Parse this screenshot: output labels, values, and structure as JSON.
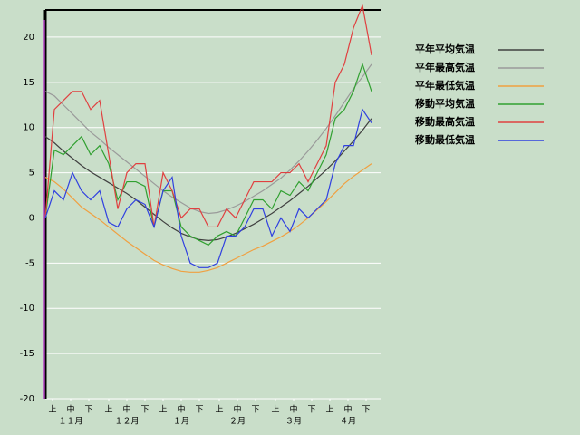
{
  "chart_data": {
    "type": "line",
    "x": [
      0,
      5,
      10,
      15,
      20,
      25,
      30,
      35,
      40,
      45,
      50,
      55,
      60,
      65,
      70,
      75,
      80,
      85,
      90,
      95,
      100,
      105,
      110,
      115,
      120,
      125,
      130,
      135,
      140,
      145,
      150,
      155,
      160,
      165,
      170,
      175,
      180
    ],
    "xlim": [
      0,
      185
    ],
    "xticks": [
      {
        "value": 4,
        "label": "上"
      },
      {
        "value": 14,
        "label": "中"
      },
      {
        "value": 24,
        "label": "下"
      },
      {
        "value": 35,
        "label": "上"
      },
      {
        "value": 45,
        "label": "中"
      },
      {
        "value": 55,
        "label": "下"
      },
      {
        "value": 65,
        "label": "上"
      },
      {
        "value": 75,
        "label": "中"
      },
      {
        "value": 85,
        "label": "下"
      },
      {
        "value": 96,
        "label": "上"
      },
      {
        "value": 106,
        "label": "中"
      },
      {
        "value": 116,
        "label": "下"
      },
      {
        "value": 127,
        "label": "上"
      },
      {
        "value": 137,
        "label": "中"
      },
      {
        "value": 147,
        "label": "下"
      },
      {
        "value": 157,
        "label": "上"
      },
      {
        "value": 167,
        "label": "中"
      },
      {
        "value": 177,
        "label": "下"
      }
    ],
    "month_ticks": [
      {
        "value": 14,
        "label": "１１月"
      },
      {
        "value": 45,
        "label": "１２月"
      },
      {
        "value": 75,
        "label": "１月"
      },
      {
        "value": 106,
        "label": "２月"
      },
      {
        "value": 137,
        "label": "３月"
      },
      {
        "value": 167,
        "label": "４月"
      }
    ],
    "ylim": [
      -20,
      23
    ],
    "yticks": [
      -20,
      -15,
      -10,
      -5,
      0,
      5,
      10,
      15,
      20
    ],
    "grid": true,
    "legend": "right",
    "series": [
      {
        "name": "平年平均気温",
        "color": "#404040",
        "values": [
          9,
          8.3,
          7.4,
          6.6,
          5.8,
          5.1,
          4.5,
          3.9,
          3.3,
          2.7,
          2.0,
          1.2,
          0.4,
          -0.4,
          -1.1,
          -1.7,
          -2.1,
          -2.4,
          -2.5,
          -2.4,
          -2.1,
          -1.7,
          -1.2,
          -0.7,
          -0.1,
          0.5,
          1.2,
          1.9,
          2.7,
          3.5,
          4.4,
          5.3,
          6.3,
          7.4,
          8.5,
          9.7,
          11
        ]
      },
      {
        "name": "平年最高気温",
        "color": "#9a9a9a",
        "values": [
          14,
          13.5,
          12.5,
          11.5,
          10.5,
          9.5,
          8.7,
          7.8,
          7,
          6.2,
          5.4,
          4.6,
          3.8,
          3,
          2.3,
          1.7,
          1.1,
          0.7,
          0.5,
          0.6,
          0.9,
          1.3,
          1.8,
          2.4,
          3,
          3.7,
          4.4,
          5.3,
          6.3,
          7.4,
          8.6,
          9.9,
          11.3,
          12.8,
          14.3,
          15.6,
          17
        ]
      },
      {
        "name": "平年最低気温",
        "color": "#f0a040",
        "values": [
          4.5,
          4,
          3.2,
          2.2,
          1.2,
          0.5,
          -0.2,
          -1,
          -1.8,
          -2.6,
          -3.3,
          -4,
          -4.7,
          -5.2,
          -5.6,
          -5.9,
          -6,
          -6,
          -5.8,
          -5.5,
          -5,
          -4.5,
          -4,
          -3.5,
          -3.1,
          -2.6,
          -2.1,
          -1.5,
          -0.8,
          0,
          0.9,
          1.8,
          2.8,
          3.8,
          4.6,
          5.3,
          6
        ]
      },
      {
        "name": "移動平均気温",
        "color": "#30a030",
        "values": [
          0,
          7.5,
          7,
          8,
          9,
          7,
          8,
          6,
          2,
          4,
          4,
          3.5,
          -1,
          3,
          3,
          -1,
          -2,
          -2.5,
          -3,
          -2,
          -1.5,
          -2,
          0,
          2,
          2,
          1,
          3,
          2.5,
          4,
          3,
          5,
          7,
          11,
          12,
          14,
          17,
          14
        ]
      },
      {
        "name": "移動最高気温",
        "color": "#e04040",
        "values": [
          0,
          12,
          13,
          14,
          14,
          12,
          13,
          7,
          1,
          5,
          6,
          6,
          -1,
          5,
          3,
          0,
          1,
          1,
          -1,
          -1,
          1,
          0,
          2,
          4,
          4,
          4,
          5,
          5,
          6,
          4,
          6,
          8,
          15,
          17,
          21,
          23.5,
          18
        ]
      },
      {
        "name": "移動最低気温",
        "color": "#3040e0",
        "values": [
          0,
          3,
          2,
          5,
          3,
          2,
          3,
          -0.5,
          -1,
          1,
          2,
          1.5,
          -1,
          3,
          4.5,
          -2,
          -5,
          -5.5,
          -5.5,
          -5,
          -2,
          -2,
          -1,
          1,
          1,
          -2,
          0,
          -1.5,
          1,
          0,
          1,
          2,
          6,
          8,
          8,
          12,
          10.5
        ]
      }
    ]
  }
}
